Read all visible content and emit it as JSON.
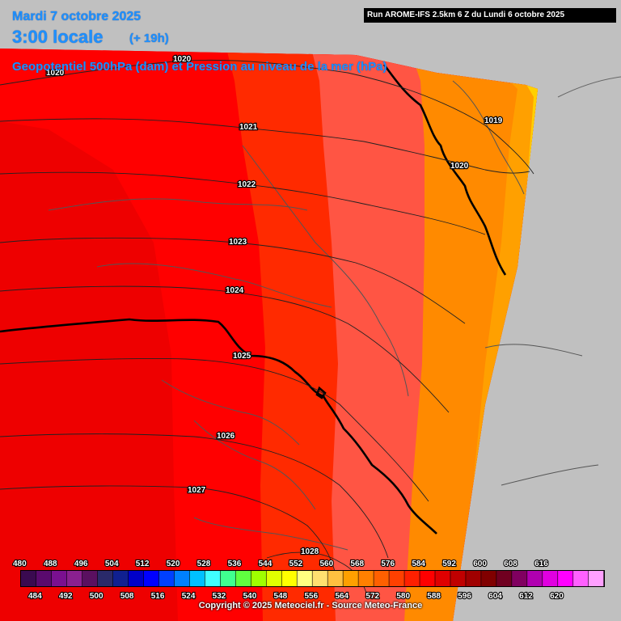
{
  "header": {
    "date": "Mardi 7 octobre 2025",
    "time": "3:00 locale",
    "offset": "(+ 19h)",
    "subtitle": "Geopotentiel 500hPa (dam) et Pression au niveau de la mer (hPa)",
    "run": "Run AROME-IFS 2.5km 6 Z du Lundi 6 octobre 2025"
  },
  "footer": {
    "copyright": "Copyright © 2025 Meteociel.fr - Source Meteo-France"
  },
  "map": {
    "outside_domain_color": "#c0c0c0",
    "geopotential_bands": [
      {
        "dam": 588,
        "color": "#ee0000"
      },
      {
        "dam": 584,
        "color": "#ff0000"
      },
      {
        "dam": 580,
        "color": "#ff2a00"
      },
      {
        "dam": 576,
        "color": "#ff3c00"
      },
      {
        "dam": 572,
        "color": "#ff5544"
      },
      {
        "dam": 568,
        "color": "#ff6a10"
      },
      {
        "dam": 564,
        "color": "#ff8a00"
      },
      {
        "dam": 560,
        "color": "#ffa000"
      },
      {
        "dam": 556,
        "color": "#ffd000"
      }
    ],
    "isobar_labels": [
      "1020",
      "1021",
      "1022",
      "1023",
      "1024",
      "1025",
      "1026",
      "1027",
      "1028",
      "1019",
      "1020",
      "1020"
    ],
    "scale_top": [
      "480",
      "488",
      "496",
      "504",
      "512",
      "520",
      "528",
      "536",
      "544",
      "552",
      "560",
      "568",
      "576",
      "584",
      "592",
      "600",
      "608",
      "616"
    ],
    "scale_bottom": [
      "484",
      "492",
      "500",
      "508",
      "516",
      "524",
      "532",
      "540",
      "548",
      "556",
      "564",
      "572",
      "580",
      "588",
      "596",
      "604",
      "612",
      "620"
    ],
    "scale_colors": [
      "#3a0a50",
      "#5a0a6e",
      "#7a1090",
      "#8a2090",
      "#5a1060",
      "#2a2a6a",
      "#102090",
      "#0000c8",
      "#0000ff",
      "#0040ff",
      "#0080ff",
      "#00c0ff",
      "#40ffff",
      "#40ff90",
      "#60ff40",
      "#a0ff00",
      "#e0ff00",
      "#ffff00",
      "#ffff80",
      "#ffe070",
      "#ffc040",
      "#ffa000",
      "#ff8000",
      "#ff6000",
      "#ff4000",
      "#ff2000",
      "#ff0000",
      "#e00000",
      "#c00000",
      "#a00000",
      "#800000",
      "#700020",
      "#800060",
      "#b000b0",
      "#e000e0",
      "#ff00ff",
      "#ff60ff",
      "#ffa0ff"
    ]
  }
}
